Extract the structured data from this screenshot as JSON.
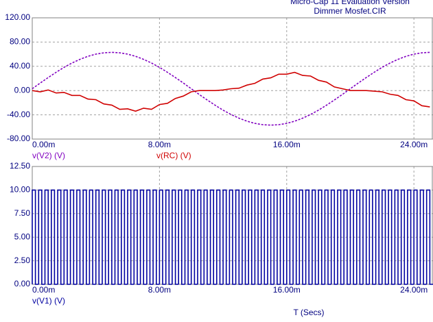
{
  "title": "Micro-Cap 11 Evaluation Version",
  "subtitle": "Dimmer Mosfet.CIR",
  "chart_data": [
    {
      "type": "line",
      "xlim": [
        0,
        25.2
      ],
      "ylim": [
        -80,
        120
      ],
      "xticks": [
        {
          "value": 0,
          "label": "0.00m"
        },
        {
          "value": 8,
          "label": "8.00m"
        },
        {
          "value": 16,
          "label": "16.00m"
        },
        {
          "value": 24,
          "label": "24.00m"
        }
      ],
      "yticks": [
        {
          "value": -80,
          "label": "-80.00"
        },
        {
          "value": -40,
          "label": "-40.00"
        },
        {
          "value": 0,
          "label": "0.00"
        },
        {
          "value": 40,
          "label": "40.00"
        },
        {
          "value": 80,
          "label": "80.00"
        },
        {
          "value": 120,
          "label": "120.00"
        }
      ],
      "grid": true,
      "x": [
        0,
        0.5,
        1,
        1.5,
        2,
        2.5,
        3,
        3.5,
        4,
        4.5,
        5,
        5.5,
        6,
        6.5,
        7,
        7.5,
        8,
        8.5,
        9,
        9.5,
        10,
        10.5,
        11,
        11.5,
        12,
        12.5,
        13,
        13.5,
        14,
        14.5,
        15,
        15.5,
        16,
        16.5,
        17,
        17.5,
        18,
        18.5,
        19,
        19.5,
        20,
        20.5,
        21,
        21.5,
        22,
        22.5,
        23,
        23.5,
        24,
        24.5,
        25
      ],
      "series": [
        {
          "name": "v(V2) (V)",
          "color": "#8000c0",
          "dashed": true,
          "values": [
            3,
            12.4,
            21.5,
            30.2,
            38.3,
            45.4,
            51.5,
            56.5,
            60.1,
            62.3,
            63,
            62.3,
            60.1,
            56.5,
            51.5,
            45.4,
            38.3,
            30.2,
            21.5,
            12.4,
            3,
            -6.4,
            -15.5,
            -24.2,
            -32.3,
            -39.4,
            -45.5,
            -50.5,
            -54.1,
            -56.3,
            -57,
            -56.3,
            -54.1,
            -50.5,
            -45.5,
            -39.4,
            -32.3,
            -24.2,
            -15.5,
            -6.4,
            3,
            12.4,
            21.5,
            30.2,
            38.3,
            45.4,
            51.5,
            56.5,
            60.1,
            62.3,
            63
          ]
        },
        {
          "name": "v(RC) (V)",
          "color": "#d00000",
          "dashed": false,
          "values": [
            0,
            -2,
            1,
            -4,
            -3,
            -8,
            -8,
            -14,
            -15,
            -22,
            -24,
            -31,
            -30,
            -34,
            -29,
            -31,
            -23,
            -21,
            -13,
            -9,
            -2,
            0,
            0,
            0,
            1,
            3,
            4,
            9,
            12,
            19,
            21,
            27,
            27,
            30,
            25,
            24,
            17,
            14,
            6,
            3,
            0,
            0,
            0,
            -1,
            -2,
            -6,
            -8,
            -15,
            -17,
            -25,
            -27
          ]
        }
      ]
    },
    {
      "type": "pulse",
      "xlim": [
        0,
        25.2
      ],
      "ylim": [
        0,
        12.5
      ],
      "xticks": [
        {
          "value": 0,
          "label": "0.00m"
        },
        {
          "value": 8,
          "label": "8.00m"
        },
        {
          "value": 16,
          "label": "16.00m"
        },
        {
          "value": 24,
          "label": "24.00m"
        }
      ],
      "yticks": [
        {
          "value": 0,
          "label": "0.00"
        },
        {
          "value": 2.5,
          "label": "2.50"
        },
        {
          "value": 5,
          "label": "5.00"
        },
        {
          "value": 7.5,
          "label": "7.50"
        },
        {
          "value": 10,
          "label": "10.00"
        },
        {
          "value": 12.5,
          "label": "12.50"
        }
      ],
      "grid": true,
      "xlabel": "T (Secs)",
      "series": [
        {
          "name": "v(V1) (V)",
          "color": "#0000a0",
          "period": 0.4,
          "values": [
            0,
            10
          ]
        }
      ]
    }
  ]
}
